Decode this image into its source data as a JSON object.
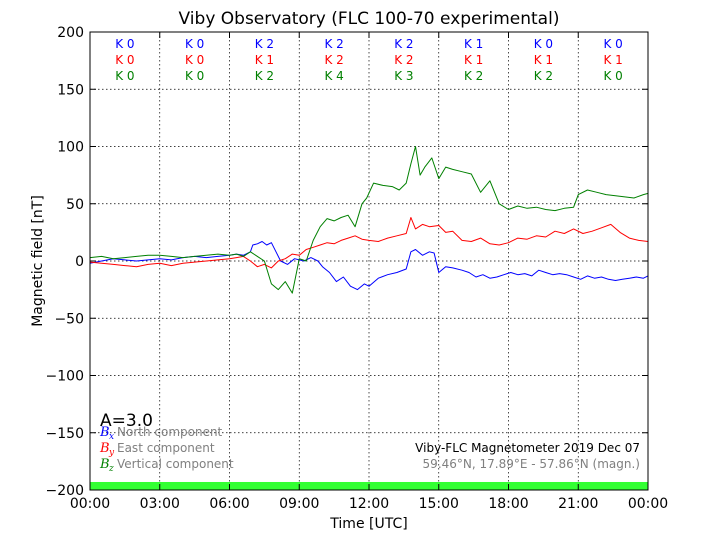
{
  "chart_data": {
    "type": "line",
    "title": "Viby Observatory (FLC 100-70 experimental)",
    "xlabel": "Time [UTC]",
    "ylabel": "Magnetic field [nT]",
    "xlim": [
      0,
      24
    ],
    "ylim": [
      -200,
      200
    ],
    "x_ticks": [
      0,
      3,
      6,
      9,
      12,
      15,
      18,
      21,
      24
    ],
    "x_tick_labels": [
      "00:00",
      "03:00",
      "06:00",
      "09:00",
      "12:00",
      "15:00",
      "18:00",
      "21:00",
      "00:00"
    ],
    "y_ticks": [
      -200,
      -150,
      -100,
      -50,
      0,
      50,
      100,
      150,
      200
    ],
    "y_tick_labels": [
      "−200",
      "−150",
      "−100",
      "−50",
      "0",
      "50",
      "100",
      "150",
      "200"
    ],
    "grid": true,
    "k_index": {
      "interval_hours": 3,
      "rows": [
        {
          "color": "#0000ff",
          "labels": [
            "K 0",
            "K 0",
            "K 2",
            "K 2",
            "K 2",
            "K 1",
            "K 0",
            "K 0"
          ]
        },
        {
          "color": "#ff0000",
          "labels": [
            "K 0",
            "K 0",
            "K 1",
            "K 2",
            "K 2",
            "K 1",
            "K 1",
            "K 1"
          ]
        },
        {
          "color": "#008000",
          "labels": [
            "K 0",
            "K 0",
            "K 2",
            "K 4",
            "K 3",
            "K 2",
            "K 2",
            "K 0"
          ]
        }
      ]
    },
    "a_index": "A=3.0",
    "legend": {
      "placement": "bottom-left",
      "entries": [
        {
          "symbol": "B",
          "sub": "x",
          "label": "North component",
          "color": "#0000ff"
        },
        {
          "symbol": "B",
          "sub": "y",
          "label": "East component",
          "color": "#ff0000"
        },
        {
          "symbol": "B",
          "sub": "z",
          "label": "Vertical component",
          "color": "#008000"
        }
      ]
    },
    "info": {
      "line1": "Viby-FLC Magnetometer 2019 Dec 07",
      "line2": "59.46°N, 17.89°E - 57.86°N (magn.)"
    },
    "status_band": {
      "color": "#33ff33",
      "from": -200,
      "to": -193
    },
    "series": [
      {
        "color": "#0000ff",
        "x": [
          0,
          0.5,
          1,
          1.5,
          2,
          2.5,
          3,
          3.5,
          4,
          4.5,
          5,
          5.5,
          6,
          6.3,
          6.6,
          6.9,
          7.0,
          7.2,
          7.4,
          7.6,
          7.8,
          8.0,
          8.2,
          8.5,
          8.8,
          9.0,
          9.2,
          9.5,
          9.8,
          10.0,
          10.3,
          10.6,
          10.9,
          11.2,
          11.5,
          11.8,
          12.0,
          12.4,
          12.8,
          13.2,
          13.6,
          13.8,
          14.0,
          14.3,
          14.6,
          14.8,
          15.0,
          15.3,
          15.6,
          16.0,
          16.3,
          16.6,
          16.9,
          17.2,
          17.5,
          17.8,
          18.1,
          18.4,
          18.7,
          19.0,
          19.3,
          19.6,
          19.9,
          20.2,
          20.5,
          20.8,
          21.1,
          21.4,
          21.7,
          22.0,
          22.3,
          22.6,
          22.9,
          23.2,
          23.5,
          23.8,
          24.0
        ],
        "y": [
          -2,
          0,
          2,
          1,
          0,
          1,
          2,
          1,
          3,
          4,
          3,
          4,
          5,
          6,
          5,
          8,
          14,
          15,
          17,
          14,
          16,
          8,
          0,
          -3,
          2,
          1,
          0,
          3,
          0,
          -5,
          -10,
          -18,
          -14,
          -22,
          -25,
          -20,
          -22,
          -15,
          -12,
          -10,
          -7,
          8,
          10,
          5,
          8,
          7,
          -10,
          -5,
          -6,
          -8,
          -10,
          -14,
          -12,
          -15,
          -14,
          -12,
          -10,
          -12,
          -11,
          -13,
          -8,
          -10,
          -12,
          -11,
          -12,
          -14,
          -16,
          -13,
          -15,
          -14,
          -16,
          -17,
          -16,
          -15,
          -14,
          -15,
          -13
        ]
      },
      {
        "color": "#ff0000",
        "x": [
          0,
          0.5,
          1,
          1.5,
          2,
          2.5,
          3,
          3.5,
          4,
          4.5,
          5,
          5.5,
          6,
          6.3,
          6.6,
          6.9,
          7.2,
          7.5,
          7.8,
          8.1,
          8.4,
          8.7,
          9.0,
          9.3,
          9.6,
          9.9,
          10.2,
          10.5,
          10.8,
          11.1,
          11.4,
          11.7,
          12.0,
          12.4,
          12.8,
          13.2,
          13.6,
          13.8,
          14.0,
          14.3,
          14.6,
          15.0,
          15.3,
          15.6,
          16.0,
          16.4,
          16.8,
          17.2,
          17.6,
          18.0,
          18.4,
          18.8,
          19.2,
          19.6,
          20.0,
          20.4,
          20.8,
          21.2,
          21.6,
          22.0,
          22.4,
          22.8,
          23.2,
          23.6,
          24.0
        ],
        "y": [
          -1,
          -2,
          -3,
          -4,
          -5,
          -3,
          -2,
          -4,
          -2,
          -1,
          0,
          1,
          2,
          3,
          4,
          0,
          -5,
          -3,
          -6,
          0,
          2,
          6,
          5,
          10,
          12,
          14,
          16,
          15,
          18,
          20,
          22,
          19,
          18,
          17,
          20,
          22,
          24,
          38,
          28,
          32,
          30,
          31,
          25,
          26,
          18,
          17,
          20,
          15,
          14,
          16,
          20,
          19,
          22,
          21,
          26,
          24,
          28,
          24,
          26,
          29,
          32,
          25,
          20,
          18,
          17
        ]
      },
      {
        "color": "#008000",
        "x": [
          0,
          0.5,
          1,
          1.5,
          2,
          2.5,
          3,
          3.5,
          4,
          4.5,
          5,
          5.5,
          6,
          6.3,
          6.6,
          6.9,
          7.2,
          7.5,
          7.8,
          8.1,
          8.4,
          8.7,
          9.0,
          9.3,
          9.6,
          9.9,
          10.2,
          10.5,
          10.8,
          11.1,
          11.4,
          11.7,
          11.9,
          12.2,
          12.6,
          13.0,
          13.3,
          13.6,
          13.8,
          14.0,
          14.2,
          14.4,
          14.7,
          15.0,
          15.3,
          15.6,
          16.0,
          16.4,
          16.8,
          17.2,
          17.6,
          18.0,
          18.4,
          18.8,
          19.2,
          19.6,
          20.0,
          20.4,
          20.8,
          21.0,
          21.4,
          21.8,
          22.2,
          22.6,
          23.0,
          23.4,
          23.8,
          24.0
        ],
        "y": [
          3,
          4,
          2,
          3,
          4,
          5,
          5,
          4,
          3,
          4,
          5,
          6,
          5,
          6,
          4,
          8,
          4,
          0,
          -20,
          -25,
          -18,
          -28,
          2,
          0,
          18,
          30,
          37,
          35,
          38,
          40,
          30,
          50,
          55,
          68,
          66,
          65,
          62,
          68,
          85,
          100,
          75,
          82,
          90,
          72,
          82,
          80,
          78,
          76,
          60,
          70,
          50,
          45,
          48,
          46,
          47,
          45,
          44,
          46,
          47,
          58,
          62,
          60,
          58,
          57,
          56,
          55,
          58,
          59
        ]
      }
    ]
  }
}
